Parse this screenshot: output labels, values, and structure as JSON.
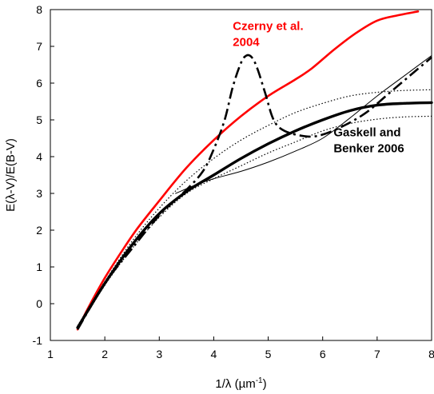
{
  "chart_data": {
    "type": "line",
    "title": "",
    "xlabel": "1/λ (µm⁻¹)",
    "xlabel_parts": {
      "base": "1/λ (µm",
      "sup": "-1",
      "close": ")"
    },
    "ylabel": "E(λ-V)/E(B-V)",
    "xlim": [
      1,
      8
    ],
    "ylim": [
      -1,
      8
    ],
    "x_ticks": [
      "1",
      "2",
      "3",
      "4",
      "5",
      "6",
      "7",
      "8"
    ],
    "y_ticks": [
      "-1",
      "0",
      "1",
      "2",
      "3",
      "4",
      "5",
      "6",
      "7",
      "8"
    ],
    "grid": false,
    "legend": "none",
    "annotations": [
      {
        "lines": [
          "Czerny et al.",
          "2004"
        ],
        "color": "#ff0000",
        "at_data": [
          4.35,
          7.45
        ]
      },
      {
        "lines": [
          "Gaskell and",
          "Benker 2006"
        ],
        "color": "#000000",
        "at_data": [
          6.2,
          4.55
        ]
      }
    ],
    "series": [
      {
        "color": "#ff0000",
        "style": "solid",
        "width": 2.6,
        "points": [
          [
            1.5,
            -0.7
          ],
          [
            1.7,
            -0.1
          ],
          [
            2.0,
            0.7
          ],
          [
            2.3,
            1.4
          ],
          [
            2.6,
            2.05
          ],
          [
            3.0,
            2.8
          ],
          [
            3.5,
            3.7
          ],
          [
            4.0,
            4.45
          ],
          [
            4.5,
            5.1
          ],
          [
            5.0,
            5.65
          ],
          [
            5.5,
            6.1
          ],
          [
            5.8,
            6.4
          ],
          [
            6.2,
            6.9
          ],
          [
            6.6,
            7.35
          ],
          [
            7.0,
            7.7
          ],
          [
            7.4,
            7.85
          ],
          [
            7.75,
            7.95
          ]
        ]
      },
      {
        "color": "#000000",
        "style": "solid",
        "width": 3.4,
        "points": [
          [
            1.5,
            -0.65
          ],
          [
            2.0,
            0.55
          ],
          [
            2.5,
            1.6
          ],
          [
            3.0,
            2.45
          ],
          [
            3.5,
            3.05
          ],
          [
            4.0,
            3.5
          ],
          [
            4.5,
            3.95
          ],
          [
            5.0,
            4.35
          ],
          [
            5.5,
            4.7
          ],
          [
            6.0,
            5.0
          ],
          [
            6.5,
            5.25
          ],
          [
            7.0,
            5.4
          ],
          [
            7.5,
            5.45
          ],
          [
            8.0,
            5.47
          ]
        ]
      },
      {
        "color": "#000000",
        "style": "dotted",
        "width": 1.2,
        "points": [
          [
            1.5,
            -0.6
          ],
          [
            2.0,
            0.6
          ],
          [
            2.5,
            1.7
          ],
          [
            3.0,
            2.6
          ],
          [
            3.5,
            3.35
          ],
          [
            4.0,
            3.95
          ],
          [
            4.5,
            4.45
          ],
          [
            5.0,
            4.85
          ],
          [
            5.5,
            5.2
          ],
          [
            6.0,
            5.45
          ],
          [
            6.5,
            5.65
          ],
          [
            7.0,
            5.75
          ],
          [
            7.5,
            5.8
          ],
          [
            8.0,
            5.82
          ]
        ]
      },
      {
        "color": "#000000",
        "style": "dotted",
        "width": 1.2,
        "points": [
          [
            1.5,
            -0.7
          ],
          [
            2.0,
            0.5
          ],
          [
            2.5,
            1.5
          ],
          [
            3.0,
            2.35
          ],
          [
            3.5,
            3.0
          ],
          [
            4.0,
            3.4
          ],
          [
            4.5,
            3.75
          ],
          [
            5.0,
            4.1
          ],
          [
            5.5,
            4.4
          ],
          [
            6.0,
            4.7
          ],
          [
            6.5,
            4.9
          ],
          [
            7.0,
            5.02
          ],
          [
            7.5,
            5.08
          ],
          [
            8.0,
            5.1
          ]
        ]
      },
      {
        "color": "#000000",
        "style": "solid",
        "width": 1.0,
        "points": [
          [
            3.3,
            3.0
          ],
          [
            3.7,
            3.25
          ],
          [
            4.0,
            3.4
          ],
          [
            4.5,
            3.6
          ],
          [
            5.0,
            3.85
          ],
          [
            5.5,
            4.15
          ],
          [
            6.0,
            4.5
          ],
          [
            6.5,
            5.05
          ],
          [
            7.0,
            5.65
          ],
          [
            7.5,
            6.2
          ],
          [
            8.0,
            6.75
          ]
        ]
      },
      {
        "color": "#000000",
        "style": "dashdot",
        "width": 2.6,
        "points": [
          [
            1.5,
            -0.7
          ],
          [
            2.0,
            0.55
          ],
          [
            2.5,
            1.5
          ],
          [
            3.0,
            2.4
          ],
          [
            3.5,
            3.1
          ],
          [
            3.8,
            3.6
          ],
          [
            4.0,
            4.2
          ],
          [
            4.2,
            5.0
          ],
          [
            4.35,
            5.9
          ],
          [
            4.5,
            6.55
          ],
          [
            4.6,
            6.75
          ],
          [
            4.7,
            6.7
          ],
          [
            4.8,
            6.4
          ],
          [
            4.95,
            5.7
          ],
          [
            5.1,
            5.0
          ],
          [
            5.3,
            4.7
          ],
          [
            5.7,
            4.55
          ],
          [
            6.0,
            4.6
          ],
          [
            6.4,
            4.85
          ],
          [
            6.8,
            5.2
          ],
          [
            7.2,
            5.7
          ],
          [
            7.6,
            6.2
          ],
          [
            8.0,
            6.7
          ]
        ]
      }
    ]
  }
}
